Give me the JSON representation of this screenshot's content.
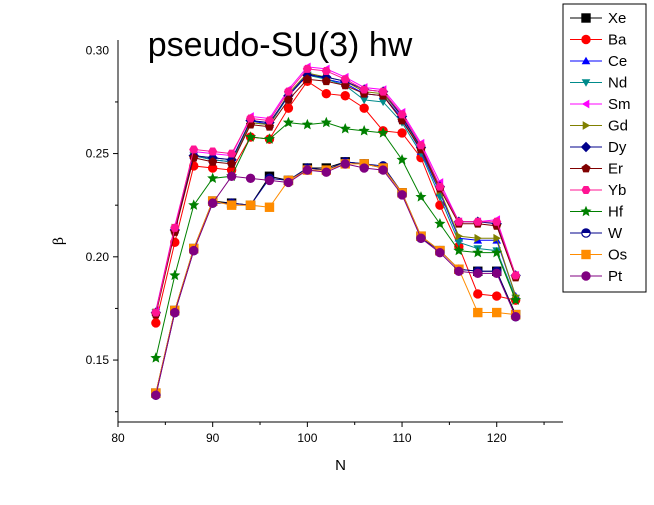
{
  "chart_data": {
    "type": "line",
    "title": "pseudo-SU(3) hw",
    "xlabel": "N",
    "ylabel": "β",
    "xlim": [
      80,
      127
    ],
    "ylim": [
      0.12,
      0.305
    ],
    "xticks": [
      "80",
      "90",
      "100",
      "110",
      "120"
    ],
    "yticks": [
      "0.15",
      "0.20",
      "0.25",
      "0.30"
    ],
    "legend_position": "top-right outside",
    "x": [
      84,
      86,
      88,
      90,
      92,
      94,
      96,
      98,
      100,
      102,
      104,
      106,
      108,
      110,
      112,
      114,
      116,
      118,
      120,
      122
    ],
    "series": [
      {
        "name": "Xe",
        "color": "#000000",
        "marker": "square",
        "values": [
          0.134,
          0.174,
          0.204,
          0.227,
          0.226,
          0.225,
          0.239,
          0.237,
          0.243,
          0.243,
          0.246,
          0.245,
          0.243,
          0.231,
          0.21,
          0.203,
          0.194,
          0.193,
          0.193,
          0.172
        ]
      },
      {
        "name": "Ba",
        "color": "#ff0000",
        "marker": "circle",
        "values": [
          0.168,
          0.207,
          0.244,
          0.243,
          0.242,
          0.258,
          0.257,
          0.272,
          0.285,
          0.279,
          0.278,
          0.272,
          0.261,
          0.26,
          0.248,
          0.225,
          0.205,
          0.182,
          0.181,
          0.179
        ]
      },
      {
        "name": "Ce",
        "color": "#0000ff",
        "marker": "triangle-up",
        "values": [
          0.173,
          0.213,
          0.249,
          0.247,
          0.246,
          0.266,
          0.264,
          0.278,
          0.289,
          0.286,
          0.284,
          0.279,
          0.278,
          0.267,
          0.251,
          0.231,
          0.209,
          0.208,
          0.208,
          0.181
        ]
      },
      {
        "name": "Nd",
        "color": "#008b8b",
        "marker": "triangle-down",
        "values": [
          0.173,
          0.213,
          0.249,
          0.247,
          0.246,
          0.265,
          0.264,
          0.278,
          0.288,
          0.286,
          0.283,
          0.276,
          0.275,
          0.265,
          0.25,
          0.229,
          0.207,
          0.204,
          0.203,
          0.18
        ]
      },
      {
        "name": "Sm",
        "color": "#ff00ff",
        "marker": "triangle-left",
        "values": [
          0.174,
          0.215,
          0.251,
          0.25,
          0.249,
          0.268,
          0.267,
          0.281,
          0.292,
          0.291,
          0.287,
          0.282,
          0.281,
          0.27,
          0.255,
          0.236,
          0.217,
          0.217,
          0.218,
          0.191
        ]
      },
      {
        "name": "Gd",
        "color": "#808000",
        "marker": "triangle-right",
        "values": [
          0.173,
          0.214,
          0.249,
          0.248,
          0.247,
          0.265,
          0.264,
          0.279,
          0.289,
          0.287,
          0.285,
          0.28,
          0.279,
          0.268,
          0.252,
          0.232,
          0.21,
          0.209,
          0.209,
          0.181
        ]
      },
      {
        "name": "Dy",
        "color": "#00008b",
        "marker": "diamond",
        "values": [
          0.173,
          0.213,
          0.249,
          0.248,
          0.247,
          0.266,
          0.265,
          0.278,
          0.288,
          0.287,
          0.285,
          0.281,
          0.28,
          0.268,
          0.253,
          0.234,
          0.217,
          0.217,
          0.216,
          0.191
        ]
      },
      {
        "name": "Er",
        "color": "#800000",
        "marker": "pentagon",
        "values": [
          0.172,
          0.212,
          0.248,
          0.246,
          0.245,
          0.264,
          0.263,
          0.276,
          0.286,
          0.285,
          0.283,
          0.279,
          0.278,
          0.266,
          0.252,
          0.233,
          0.216,
          0.216,
          0.215,
          0.19
        ]
      },
      {
        "name": "Yb",
        "color": "#ff1493",
        "marker": "hexagon",
        "values": [
          0.173,
          0.214,
          0.252,
          0.251,
          0.25,
          0.267,
          0.266,
          0.28,
          0.291,
          0.29,
          0.286,
          0.281,
          0.28,
          0.269,
          0.254,
          0.234,
          0.217,
          0.217,
          0.217,
          0.191
        ]
      },
      {
        "name": "Hf",
        "color": "#008000",
        "marker": "star",
        "values": [
          0.151,
          0.191,
          0.225,
          0.238,
          0.239,
          0.258,
          0.257,
          0.265,
          0.264,
          0.265,
          0.262,
          0.261,
          0.26,
          0.247,
          0.229,
          0.216,
          0.203,
          0.202,
          0.202,
          0.179
        ]
      },
      {
        "name": "W",
        "color": "#00008b",
        "marker": "half-circle",
        "values": [
          0.133,
          0.173,
          0.203,
          0.226,
          0.226,
          0.225,
          0.238,
          0.237,
          0.243,
          0.242,
          0.246,
          0.245,
          0.244,
          0.231,
          0.209,
          0.203,
          0.194,
          0.193,
          0.193,
          0.171
        ]
      },
      {
        "name": "Os",
        "color": "#ff8c00",
        "marker": "square",
        "values": [
          0.134,
          0.174,
          0.204,
          0.227,
          0.225,
          0.225,
          0.224,
          0.237,
          0.242,
          0.242,
          0.245,
          0.245,
          0.243,
          0.231,
          0.21,
          0.203,
          0.194,
          0.173,
          0.173,
          0.172
        ]
      },
      {
        "name": "Pt",
        "color": "#800080",
        "marker": "circle",
        "values": [
          0.133,
          0.173,
          0.203,
          0.226,
          0.239,
          0.238,
          0.237,
          0.236,
          0.242,
          0.241,
          0.245,
          0.243,
          0.242,
          0.23,
          0.209,
          0.202,
          0.193,
          0.192,
          0.192,
          0.171
        ]
      }
    ]
  }
}
